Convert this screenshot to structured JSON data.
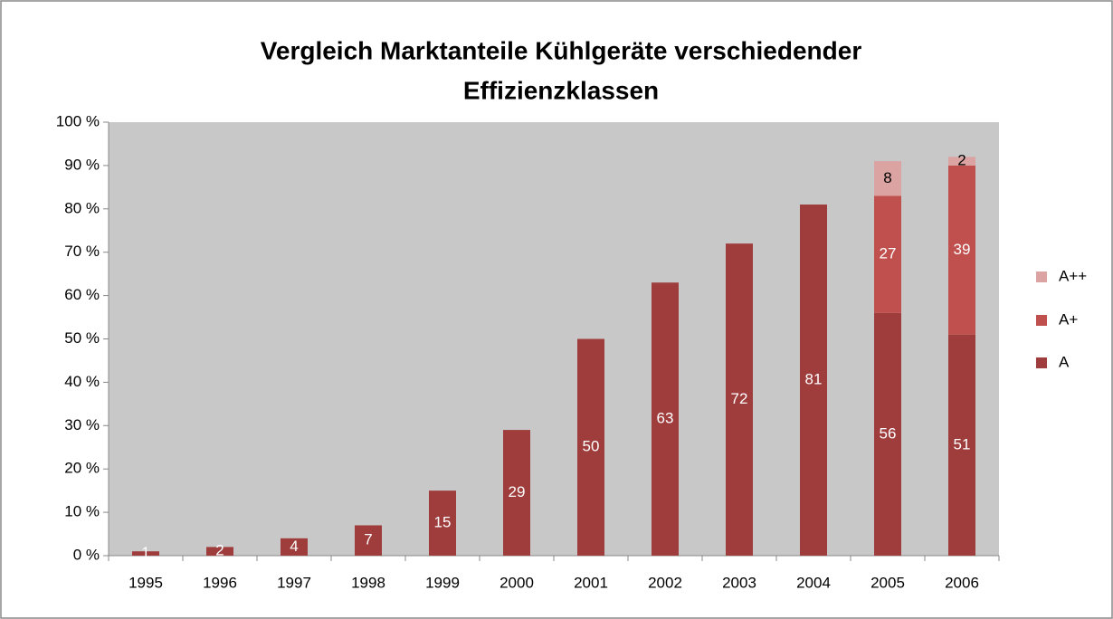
{
  "chart_data": {
    "type": "stacked_bar",
    "title": [
      "Vergleich Marktanteile Kühlgeräte verschiedender",
      "Effizienzklassen"
    ],
    "categories": [
      "1995",
      "1996",
      "1997",
      "1998",
      "1999",
      "2000",
      "2001",
      "2002",
      "2003",
      "2004",
      "2005",
      "2006"
    ],
    "series": [
      {
        "name": "A",
        "color": "#9e3d3c",
        "label_color": "#ffffff",
        "values": [
          1,
          2,
          4,
          7,
          15,
          29,
          50,
          63,
          72,
          81,
          56,
          51
        ]
      },
      {
        "name": "A+",
        "color": "#c0504d",
        "label_color": "#ffffff",
        "values": [
          null,
          null,
          null,
          null,
          null,
          null,
          null,
          null,
          null,
          null,
          27,
          39
        ]
      },
      {
        "name": "A++",
        "color": "#dba3a2",
        "label_color": "#000000",
        "values": [
          null,
          null,
          null,
          null,
          null,
          null,
          null,
          null,
          null,
          null,
          8,
          2
        ]
      }
    ],
    "ylim": [
      0,
      100
    ],
    "yticks": [
      {
        "value": 0,
        "label": "0 %"
      },
      {
        "value": 10,
        "label": "10 %"
      },
      {
        "value": 20,
        "label": "20 %"
      },
      {
        "value": 30,
        "label": "30 %"
      },
      {
        "value": 40,
        "label": "40 %"
      },
      {
        "value": 50,
        "label": "50 %"
      },
      {
        "value": 60,
        "label": "60 %"
      },
      {
        "value": 70,
        "label": "70 %"
      },
      {
        "value": 80,
        "label": "80 %"
      },
      {
        "value": 90,
        "label": "90 %"
      },
      {
        "value": 100,
        "label": "100 %"
      }
    ],
    "grid": false,
    "legend": "right",
    "plot_background": "#c8c8c8"
  }
}
